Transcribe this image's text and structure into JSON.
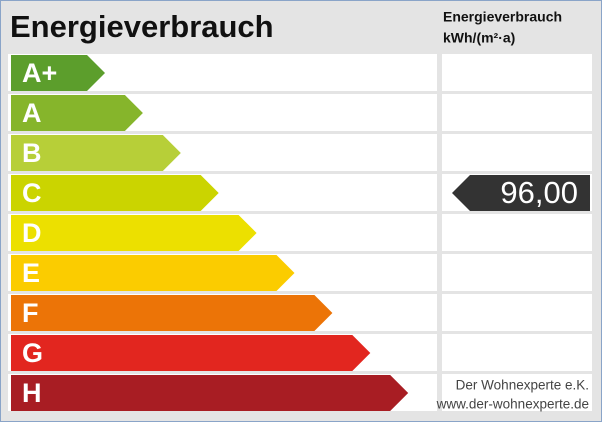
{
  "header": {
    "title": "Energieverbrauch",
    "unit_title": "Energieverbrauch",
    "unit": "kWh/(m²·a)"
  },
  "classes": [
    {
      "label": "A+",
      "color": "#5c9e2c"
    },
    {
      "label": "A",
      "color": "#86b52b"
    },
    {
      "label": "B",
      "color": "#b7cf38"
    },
    {
      "label": "C",
      "color": "#cbd400",
      "value": "96,00"
    },
    {
      "label": "D",
      "color": "#ece000"
    },
    {
      "label": "E",
      "color": "#fbcc00"
    },
    {
      "label": "F",
      "color": "#ec7407"
    },
    {
      "label": "G",
      "color": "#e2261f"
    },
    {
      "label": "H",
      "color": "#a81d23"
    }
  ],
  "footer": {
    "company": "Der Wohnexperte e.K.",
    "website": "www.der-wohnexperte.de"
  }
}
